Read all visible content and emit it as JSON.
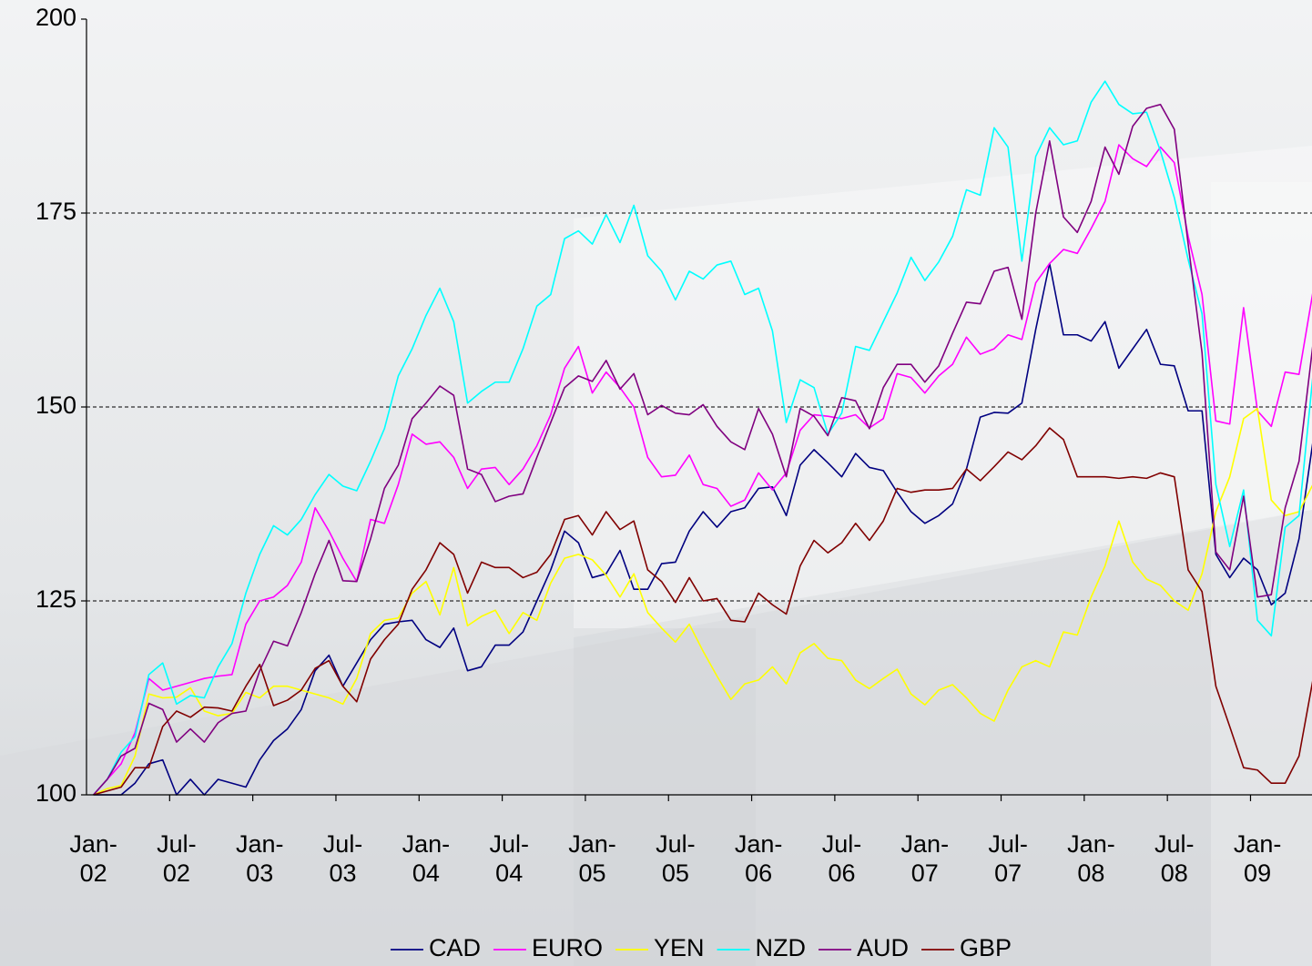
{
  "chart_data": {
    "type": "line",
    "categories": [
      "Jan-02",
      null,
      null,
      null,
      null,
      null,
      "Jul-02",
      null,
      null,
      null,
      null,
      null,
      "Jan-03",
      null,
      null,
      null,
      null,
      null,
      "Jul-03",
      null,
      null,
      null,
      null,
      null,
      "Jan-04",
      null,
      null,
      null,
      null,
      null,
      "Jul-04",
      null,
      null,
      null,
      null,
      null,
      "Jan-05",
      null,
      null,
      null,
      null,
      null,
      "Jul-05",
      null,
      null,
      null,
      null,
      null,
      "Jan-06",
      null,
      null,
      null,
      null,
      null,
      "Jul-06",
      null,
      null,
      null,
      null,
      null,
      "Jan-07",
      null,
      null,
      null,
      null,
      null,
      "Jul-07",
      null,
      null,
      null,
      null,
      null,
      "Jan-08",
      null,
      null,
      null,
      null,
      null,
      "Jul-08",
      null,
      null,
      null,
      null,
      null,
      "Jan-09",
      null,
      null,
      null,
      null
    ],
    "series": [
      {
        "name": "CAD",
        "color": "#000080",
        "values": [
          100,
          100,
          100,
          101.5,
          104,
          104.5,
          100,
          102,
          100,
          102,
          101.5,
          101,
          104.5,
          107,
          108.5,
          111,
          116,
          118,
          114,
          117,
          120,
          122,
          122.3,
          122.5,
          120,
          119,
          121.5,
          116,
          116.5,
          119.3,
          119.3,
          121,
          125,
          129,
          134,
          132.5,
          128,
          128.5,
          131.5,
          126.5,
          126.5,
          129.8,
          130,
          134,
          136.5,
          134.5,
          136.5,
          137,
          139.5,
          139.7,
          136,
          142.5,
          144.5,
          142.8,
          141,
          144,
          142.2,
          141.8,
          139,
          136.5,
          135,
          136,
          137.5,
          142,
          148.7,
          149.3,
          149.2,
          150.5,
          160,
          168.5,
          159.3,
          159.3,
          158.5,
          161,
          155,
          157.5,
          160,
          155.5,
          155.3,
          149.5,
          149.5,
          131,
          128,
          130.5,
          129,
          124.5,
          126,
          133,
          145.5
        ]
      },
      {
        "name": "EURO",
        "color": "#ff00ff",
        "values": [
          100,
          102,
          104,
          108,
          115,
          113.5,
          114,
          114.5,
          115,
          115.3,
          115.5,
          122,
          125,
          125.5,
          127,
          130,
          137,
          134,
          130.5,
          127.5,
          135.5,
          135,
          140,
          146.5,
          145.2,
          145.5,
          143.5,
          139.5,
          142,
          142.2,
          140,
          142,
          145,
          149,
          155,
          157.8,
          151.8,
          154.5,
          152.5,
          150,
          143.5,
          141,
          141.2,
          143.8,
          140,
          139.5,
          137.2,
          138,
          141.5,
          139.3,
          141.5,
          147,
          149,
          148.8,
          148.5,
          149,
          147.3,
          148.5,
          154.3,
          153.8,
          151.8,
          154,
          155.5,
          159,
          156.8,
          157.5,
          159.3,
          158.7,
          166,
          168.5,
          170.3,
          169.8,
          173,
          176.5,
          183.8,
          182,
          181,
          183.5,
          181.5,
          172,
          164.5,
          148.2,
          147.8,
          162.8,
          149.5,
          147.5,
          154.5,
          154.2,
          164.8
        ]
      },
      {
        "name": "YEN",
        "color": "#ffff00",
        "values": [
          100,
          100.8,
          101.2,
          105,
          113,
          112.5,
          112.6,
          113.8,
          110.8,
          110.2,
          110.5,
          113.2,
          112.5,
          114,
          114,
          113.5,
          113,
          112.5,
          111.7,
          115,
          120.8,
          122.5,
          122.8,
          126,
          127.5,
          123.2,
          129.3,
          121.8,
          123,
          123.8,
          120.8,
          123.5,
          122.5,
          127.3,
          130.5,
          131,
          130.3,
          128.3,
          125.5,
          128.5,
          123.5,
          121.5,
          119.7,
          122,
          118.5,
          115.3,
          112.3,
          114.3,
          114.8,
          116.5,
          114.3,
          118.3,
          119.5,
          117.6,
          117.3,
          114.8,
          113.7,
          115,
          116.2,
          113,
          111.6,
          113.5,
          114.2,
          112.5,
          110.5,
          109.5,
          113.5,
          116.5,
          117.3,
          116.5,
          121,
          120.6,
          125.5,
          129.5,
          135.3,
          130,
          127.8,
          127,
          125,
          123.8,
          128.5,
          136.5,
          141,
          148.5,
          149.8,
          138,
          136,
          136.5,
          140
        ]
      },
      {
        "name": "NZD",
        "color": "#00ffff",
        "values": [
          100,
          102,
          105.5,
          107.5,
          115.5,
          117,
          111.7,
          112.8,
          112.5,
          116.5,
          119.5,
          126,
          131,
          134.7,
          133.5,
          135.5,
          138.7,
          141.3,
          139.8,
          139.2,
          143,
          147.2,
          154,
          157.5,
          161.8,
          165.3,
          161,
          150.5,
          152,
          153.2,
          153.2,
          157.5,
          163,
          164.5,
          171.7,
          172.7,
          171,
          174.8,
          171.2,
          176,
          169.5,
          167.5,
          163.8,
          167.5,
          166.5,
          168.3,
          168.8,
          164.5,
          165.3,
          159.8,
          148,
          153.5,
          152.5,
          146.5,
          149.2,
          157.8,
          157.3,
          161,
          164.7,
          169.3,
          166.3,
          168.7,
          172,
          178,
          177.3,
          186,
          183.5,
          168.8,
          182.3,
          186,
          183.8,
          184.3,
          189.3,
          192,
          189,
          187.8,
          188,
          183,
          177,
          169,
          162,
          140,
          132,
          139.3,
          122.5,
          120.5,
          134.5,
          136,
          154
        ]
      },
      {
        "name": "AUD",
        "color": "#800080",
        "values": [
          100,
          102,
          105,
          106,
          111.8,
          111,
          106.8,
          108.5,
          106.8,
          109.3,
          110.5,
          110.8,
          116,
          119.8,
          119.2,
          123.5,
          128.5,
          132.8,
          127.6,
          127.5,
          133,
          139.5,
          142.5,
          148.5,
          150.5,
          152.7,
          151.5,
          142,
          141.3,
          137.8,
          138.5,
          138.8,
          143.5,
          148,
          152.5,
          154,
          153.3,
          156,
          152.3,
          154.3,
          149,
          150.2,
          149.2,
          149,
          150.3,
          147.5,
          145.5,
          144.5,
          149.8,
          146.5,
          141,
          149.8,
          148.8,
          146.3,
          151.2,
          150.8,
          147.2,
          152.5,
          155.5,
          155.5,
          153.2,
          155.3,
          159.5,
          163.5,
          163.3,
          167.5,
          168,
          161.3,
          175,
          184.3,
          174.5,
          172.5,
          176.5,
          183.5,
          180,
          186.2,
          188.5,
          189,
          185.8,
          171,
          157,
          131.3,
          129,
          138.5,
          125.5,
          125.8,
          137,
          143,
          158
        ]
      },
      {
        "name": "GBP",
        "color": "#800000",
        "values": [
          100,
          100.5,
          101,
          103.5,
          103.5,
          108.8,
          110.8,
          110,
          111.3,
          111.2,
          110.8,
          114,
          116.8,
          111.5,
          112.2,
          113.5,
          116.3,
          117.3,
          114,
          112,
          117.5,
          120,
          122,
          126.5,
          129,
          132.5,
          131,
          126,
          130,
          129.3,
          129.3,
          128,
          128.7,
          131,
          135.5,
          136,
          133.5,
          136.5,
          134.2,
          135.3,
          129,
          127.5,
          124.8,
          128,
          125,
          125.3,
          122.5,
          122.3,
          126,
          124.5,
          123.3,
          129.5,
          132.8,
          131.2,
          132.5,
          135,
          132.8,
          135.3,
          139.5,
          139,
          139.3,
          139.3,
          139.5,
          142,
          140.5,
          142.3,
          144.2,
          143.2,
          145,
          147.3,
          145.8,
          141,
          141,
          141,
          140.8,
          141,
          140.8,
          141.5,
          141,
          129,
          126.2,
          114,
          108.8,
          103.5,
          103.2,
          101.5,
          101.5,
          105,
          114.8
        ]
      }
    ],
    "ylim": [
      100,
      200
    ],
    "yticks": [
      100,
      125,
      150,
      175,
      200
    ],
    "grid": true,
    "legend": "bottom"
  }
}
